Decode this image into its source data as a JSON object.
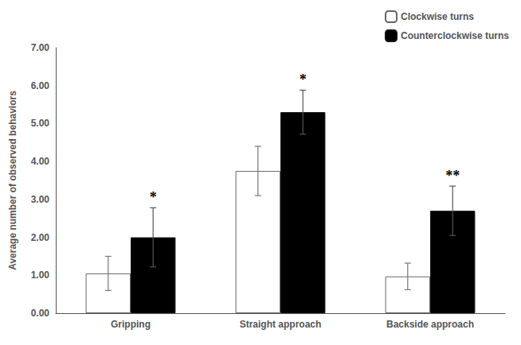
{
  "chart_data": {
    "type": "bar",
    "categories": [
      "Gripping",
      "Straight approach",
      "Backside approach"
    ],
    "series": [
      {
        "name": "Clockwise turns",
        "color": "white",
        "values": [
          1.05,
          3.75,
          0.97
        ],
        "errors": [
          0.45,
          0.65,
          0.35
        ]
      },
      {
        "name": "Counterclockwise turns",
        "color": "black",
        "values": [
          2.0,
          5.3,
          2.7
        ],
        "errors": [
          0.78,
          0.58,
          0.65
        ],
        "annotations": [
          "*",
          "*",
          "**"
        ]
      }
    ],
    "ylabel": "Average number of observed behaviors",
    "ylim": [
      0,
      7.0
    ],
    "yticks": [
      {
        "value": 0.0,
        "label": "0.00"
      },
      {
        "value": 1.0,
        "label": "1.00"
      },
      {
        "value": 2.0,
        "label": "2.00"
      },
      {
        "value": 3.0,
        "label": "3.00"
      },
      {
        "value": 4.0,
        "label": "4.00"
      },
      {
        "value": 5.0,
        "label": "5.00"
      },
      {
        "value": 6.0,
        "label": "6.00"
      },
      {
        "value": 7.0,
        "label": "7.00"
      }
    ],
    "legend": "upper right",
    "grid": false
  }
}
